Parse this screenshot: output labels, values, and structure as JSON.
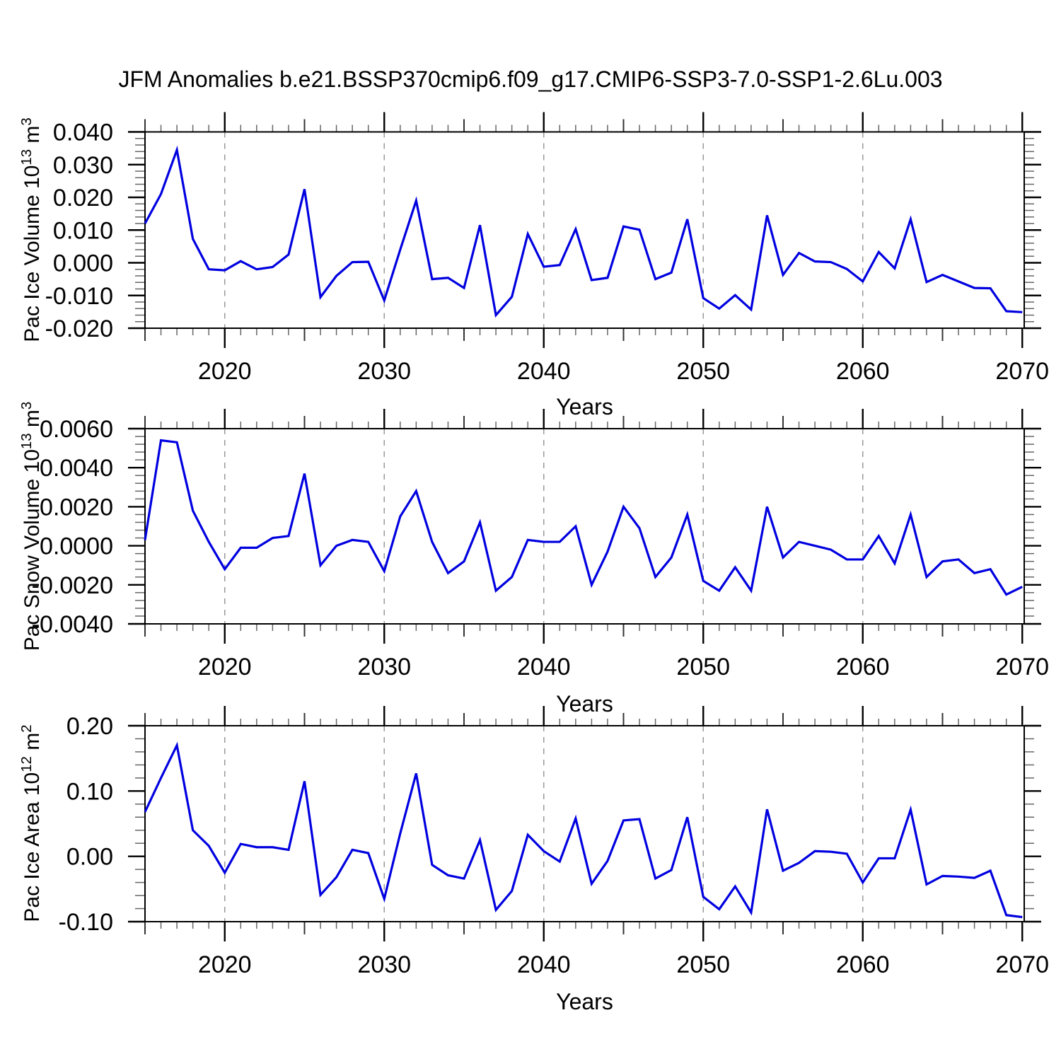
{
  "title": "JFM Anomalies b.e21.BSSP370cmip6.f09_g17.CMIP6-SSP3-7.0-SSP1-2.6Lu.003",
  "xlabel": "Years",
  "line_color": "#0000e0",
  "gridline_color": "#999999",
  "chart_data": [
    {
      "id": "pac-ice-volume",
      "type": "line",
      "ylabel": {
        "base": "Pac Ice Volume 10",
        "exp": "13",
        "unit": " m",
        "unit_exp": "3"
      },
      "xlabel": "Years",
      "x_start": 2015,
      "x_end": 2070,
      "xtick_labels": [
        "2020",
        "2030",
        "2040",
        "2050",
        "2060",
        "2070"
      ],
      "ylim": [
        -0.02,
        0.04
      ],
      "ytick_step": 0.01,
      "yminor_step": 0.002,
      "ytick_labels": [
        "0.040",
        "0.030",
        "0.020",
        "0.010",
        "0.000",
        "-0.010",
        "-0.020"
      ],
      "grid_decades": [
        2020,
        2030,
        2040,
        2050,
        2060
      ],
      "legend": "none",
      "grid": "vertical-dashed",
      "values": [
        0.012,
        0.021,
        0.0345,
        0.0073,
        -0.002,
        -0.0023,
        0.0005,
        -0.002,
        -0.0013,
        0.0025,
        0.0225,
        -0.0105,
        -0.004,
        0.0002,
        0.0003,
        -0.0115,
        0.004,
        0.019,
        -0.005,
        -0.0046,
        -0.0077,
        0.0115,
        -0.016,
        -0.0104,
        0.0088,
        -0.0012,
        -0.0007,
        0.0103,
        -0.0053,
        -0.0046,
        0.0111,
        0.0101,
        -0.005,
        -0.003,
        0.0133,
        -0.0108,
        -0.014,
        -0.0099,
        -0.0143,
        0.0145,
        -0.0037,
        0.003,
        0.0004,
        0.0002,
        -0.0019,
        -0.0057,
        0.0033,
        -0.0017,
        0.0133,
        -0.0059,
        -0.0037,
        -0.0057,
        -0.0077,
        -0.0078,
        -0.0148,
        -0.0151
      ]
    },
    {
      "id": "pac-snow-volume",
      "type": "line",
      "ylabel": {
        "base": "Pac Snow Volume 10",
        "exp": "13",
        "unit": " m",
        "unit_exp": "3"
      },
      "xlabel": "Years",
      "x_start": 2015,
      "x_end": 2070,
      "xtick_labels": [
        "2020",
        "2030",
        "2040",
        "2050",
        "2060",
        "2070"
      ],
      "ylim": [
        -0.004,
        0.006
      ],
      "ytick_step": 0.002,
      "yminor_step": 0.0004,
      "ytick_labels": [
        "0.0060",
        "0.0040",
        "0.0020",
        "0.0000",
        "-0.0020",
        "-0.0040"
      ],
      "grid_decades": [
        2020,
        2030,
        2040,
        2050,
        2060
      ],
      "legend": "none",
      "grid": "vertical-dashed",
      "values": [
        0.0003,
        0.0054,
        0.0053,
        0.0018,
        0.0002,
        -0.0012,
        -0.0001,
        -0.0001,
        0.0004,
        0.0005,
        0.0037,
        -0.001,
        0.0,
        0.0003,
        0.0002,
        -0.0013,
        0.0015,
        0.0028,
        0.0002,
        -0.0014,
        -0.0008,
        0.0012,
        -0.0023,
        -0.0016,
        0.0003,
        0.0002,
        0.0002,
        0.001,
        -0.002,
        -0.0003,
        0.002,
        0.0009,
        -0.0016,
        -0.0006,
        0.0016,
        -0.0018,
        -0.0023,
        -0.0011,
        -0.0023,
        0.002,
        -0.0006,
        0.0002,
        0.0,
        -0.0002,
        -0.0007,
        -0.0007,
        0.0005,
        -0.0009,
        0.0016,
        -0.0016,
        -0.0008,
        -0.0007,
        -0.0014,
        -0.0012,
        -0.0025,
        -0.0021
      ]
    },
    {
      "id": "pac-ice-area",
      "type": "line",
      "ylabel": {
        "base": "Pac Ice Area 10",
        "exp": "12",
        "unit": " m",
        "unit_exp": "2"
      },
      "xlabel": "Years",
      "x_start": 2015,
      "x_end": 2070,
      "xtick_labels": [
        "2020",
        "2030",
        "2040",
        "2050",
        "2060",
        "2070"
      ],
      "ylim": [
        -0.1,
        0.2
      ],
      "ytick_step": 0.1,
      "yminor_step": 0.02,
      "ytick_labels": [
        "0.20",
        "0.10",
        "0.00",
        "-0.10"
      ],
      "grid_decades": [
        2020,
        2030,
        2040,
        2050,
        2060
      ],
      "legend": "none",
      "grid": "vertical-dashed",
      "values": [
        0.068,
        0.12,
        0.17,
        0.04,
        0.016,
        -0.025,
        0.019,
        0.014,
        0.014,
        0.01,
        0.115,
        -0.059,
        -0.032,
        0.01,
        0.005,
        -0.065,
        0.035,
        0.127,
        -0.013,
        -0.029,
        -0.034,
        0.025,
        -0.082,
        -0.053,
        0.033,
        0.008,
        -0.008,
        0.058,
        -0.042,
        -0.007,
        0.055,
        0.057,
        -0.034,
        -0.021,
        0.06,
        -0.062,
        -0.081,
        -0.046,
        -0.086,
        0.072,
        -0.022,
        -0.01,
        0.008,
        0.007,
        0.004,
        -0.04,
        -0.003,
        -0.003,
        0.0715,
        -0.043,
        -0.03,
        -0.031,
        -0.033,
        -0.022,
        -0.09,
        -0.093
      ]
    }
  ]
}
